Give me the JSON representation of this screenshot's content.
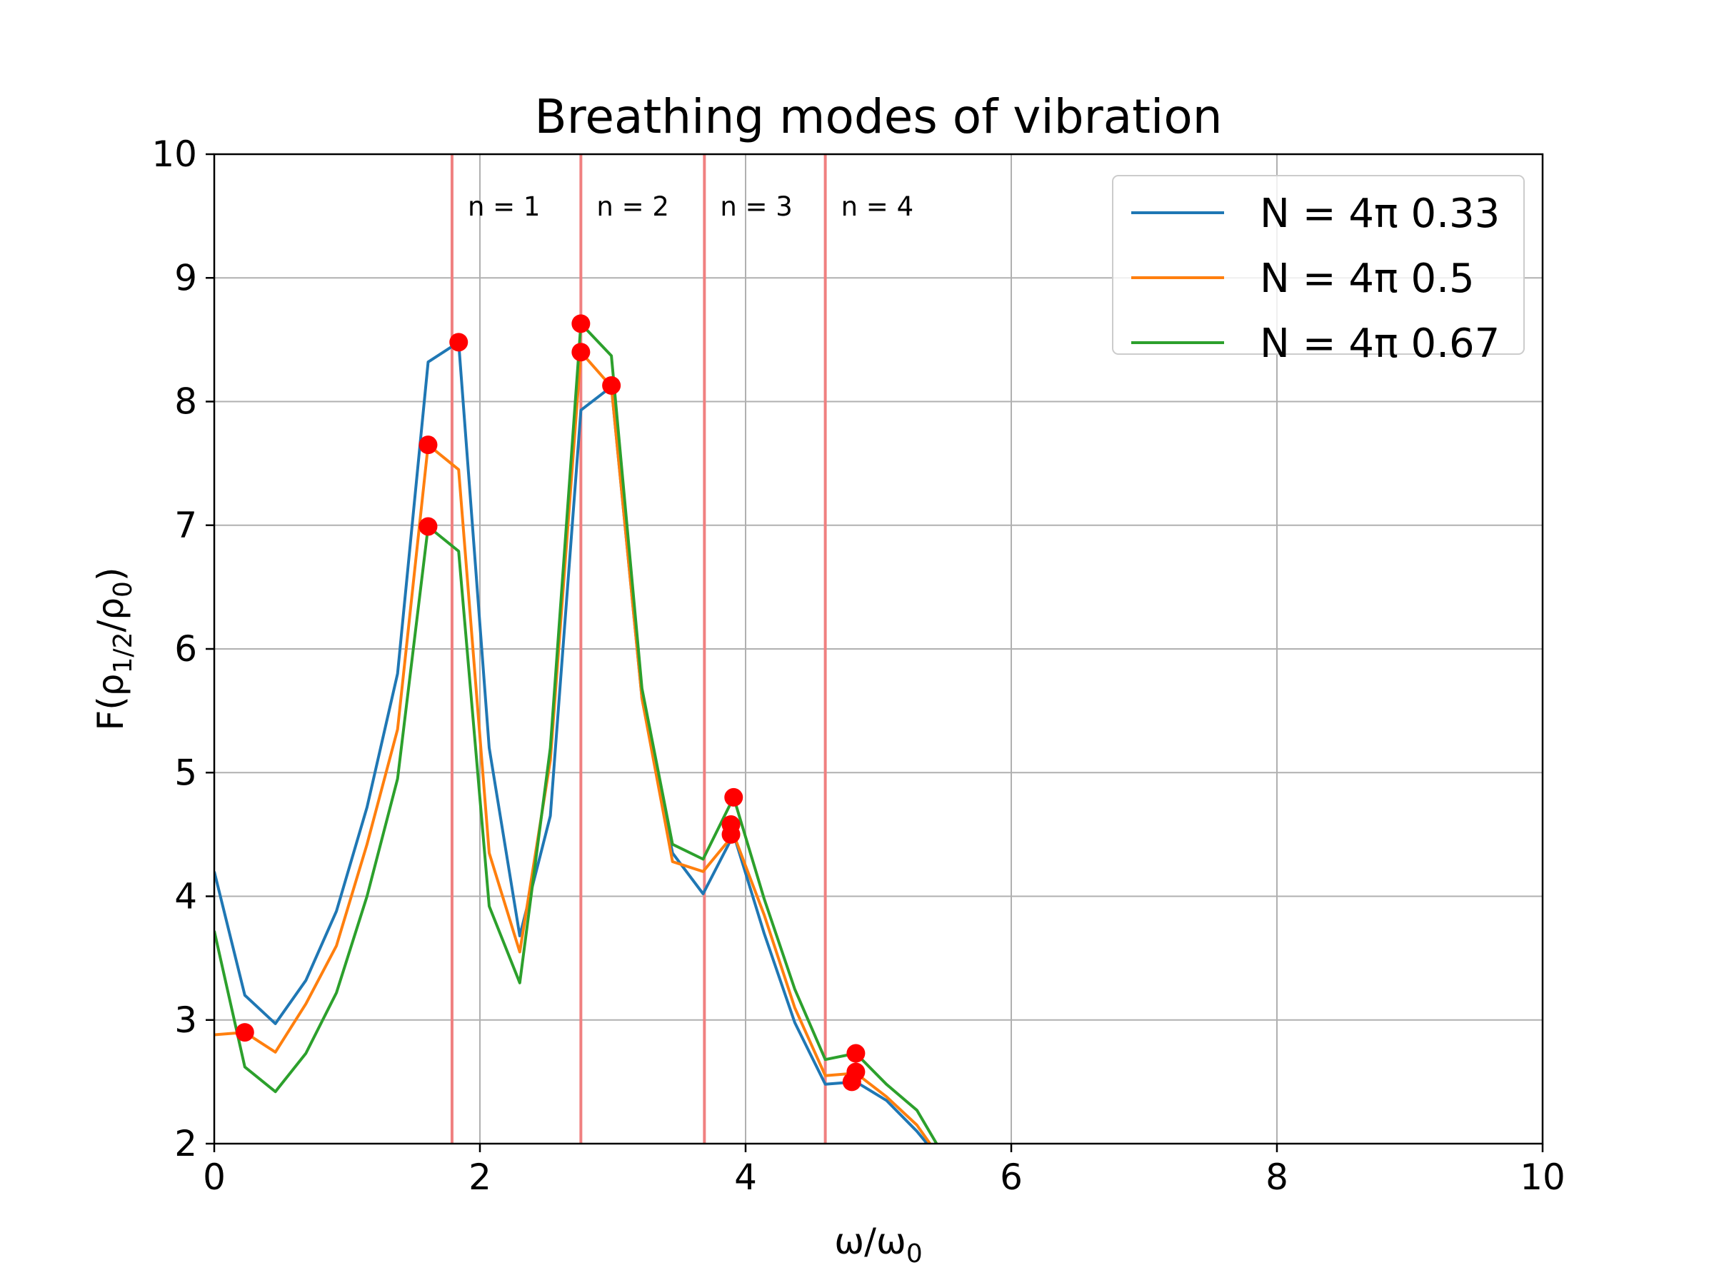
{
  "chart_data": {
    "type": "line",
    "title": "Breathing modes of vibration",
    "xlabel": {
      "base": "ω/ω",
      "sub": "0"
    },
    "ylabel": {
      "pre": "F(ρ",
      "sub1": "1/2",
      "mid": "/ρ",
      "sub2": "0",
      "post": ")"
    },
    "xlim": [
      0,
      10
    ],
    "ylim": [
      2,
      10
    ],
    "xticks": [
      0,
      2,
      4,
      6,
      8,
      10
    ],
    "yticks": [
      2,
      3,
      4,
      5,
      6,
      7,
      8,
      9,
      10
    ],
    "grid": true,
    "legend_position": "top-right",
    "x": [
      0,
      0.23,
      0.46,
      0.69,
      0.92,
      1.15,
      1.38,
      1.61,
      1.84,
      2.07,
      2.3,
      2.53,
      2.76,
      2.99,
      3.22,
      3.45,
      3.68,
      3.91,
      4.14,
      4.37,
      4.6,
      4.83,
      5.06,
      5.29,
      5.52
    ],
    "series": [
      {
        "name": "N = 4π 0.33",
        "color": "#1f77b4",
        "values": [
          4.2,
          3.2,
          2.97,
          3.32,
          3.88,
          4.72,
          5.8,
          8.32,
          8.48,
          5.2,
          3.68,
          4.65,
          7.93,
          8.12,
          5.6,
          4.35,
          4.02,
          4.5,
          3.7,
          2.98,
          2.48,
          2.5,
          2.35,
          2.1,
          1.8
        ]
      },
      {
        "name": "N = 4π 0.5",
        "color": "#ff7f0e",
        "values": [
          2.88,
          2.9,
          2.74,
          3.13,
          3.6,
          4.42,
          5.35,
          7.65,
          7.45,
          4.35,
          3.55,
          5.1,
          8.4,
          8.12,
          5.6,
          4.28,
          4.2,
          4.5,
          3.85,
          3.1,
          2.55,
          2.57,
          2.38,
          2.15,
          1.8
        ]
      },
      {
        "name": "N = 4π 0.67",
        "color": "#2ca02c",
        "values": [
          3.72,
          2.62,
          2.42,
          2.73,
          3.22,
          4.0,
          4.95,
          6.99,
          6.79,
          3.92,
          3.3,
          5.2,
          8.63,
          8.37,
          5.68,
          4.42,
          4.3,
          4.8,
          3.98,
          3.25,
          2.68,
          2.73,
          2.48,
          2.27,
          1.85
        ]
      }
    ],
    "mode_lines": [
      {
        "x": 1.79,
        "label": "n = 1"
      },
      {
        "x": 2.76,
        "label": "n = 2"
      },
      {
        "x": 3.69,
        "label": "n = 3"
      },
      {
        "x": 4.6,
        "label": "n = 4"
      }
    ],
    "mode_line_color": "#f08080",
    "marker_color": "#ff0000",
    "markers": [
      {
        "x": 0.23,
        "y": 2.9
      },
      {
        "x": 1.61,
        "y": 7.65
      },
      {
        "x": 1.61,
        "y": 6.99
      },
      {
        "x": 1.84,
        "y": 8.48
      },
      {
        "x": 2.76,
        "y": 8.63
      },
      {
        "x": 2.76,
        "y": 8.4
      },
      {
        "x": 2.99,
        "y": 8.13
      },
      {
        "x": 3.91,
        "y": 4.8
      },
      {
        "x": 3.89,
        "y": 4.58
      },
      {
        "x": 3.89,
        "y": 4.5
      },
      {
        "x": 4.83,
        "y": 2.73
      },
      {
        "x": 4.83,
        "y": 2.58
      },
      {
        "x": 4.8,
        "y": 2.5
      }
    ]
  }
}
